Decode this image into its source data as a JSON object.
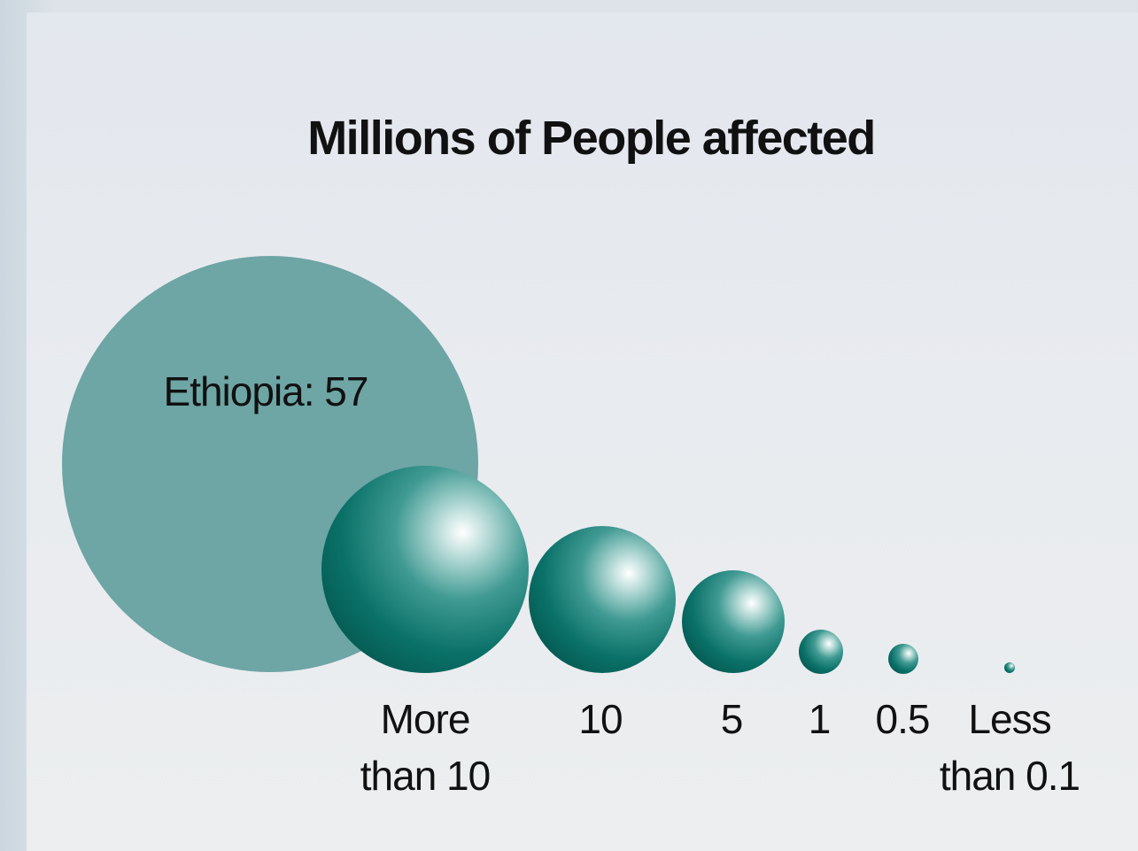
{
  "chart_data": {
    "type": "bubble-legend",
    "title": "Millions of People affected",
    "highlight": {
      "label": "Ethiopia: 57",
      "value": 57,
      "color": "#6ea5a5"
    },
    "bubble_color": "#0b7a70",
    "categories": [
      {
        "label_lines": [
          "More",
          "than 10"
        ]
      },
      {
        "label_lines": [
          "10"
        ]
      },
      {
        "label_lines": [
          "5"
        ]
      },
      {
        "label_lines": [
          "1"
        ]
      },
      {
        "label_lines": [
          "0.5"
        ]
      },
      {
        "label_lines": [
          "Less",
          "than 0.1"
        ]
      }
    ]
  }
}
